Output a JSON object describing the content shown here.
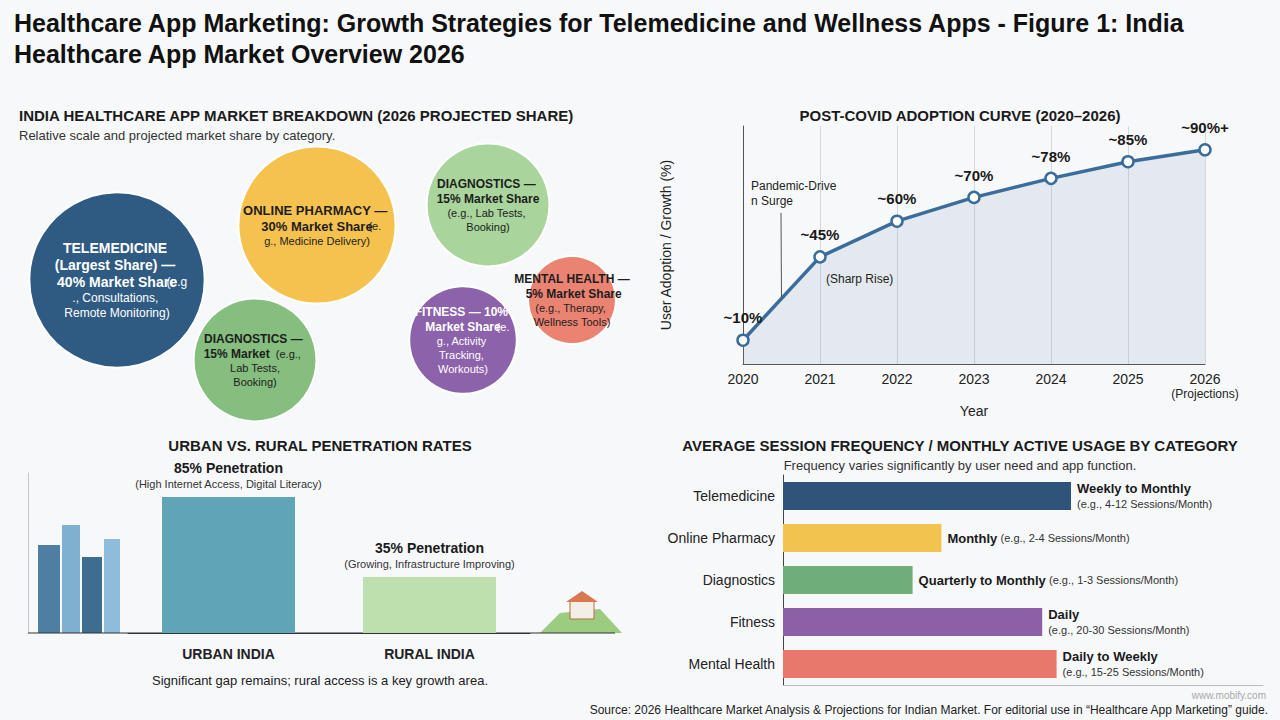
{
  "title": "Healthcare App Marketing: Growth Strategies for Telemedicine and Wellness Apps - Figure 1: India Healthcare App Market Overview 2026",
  "source": "Source: 2026 Healthcare Market Analysis & Projections for Indian Market. For editorial use in “Healthcare App Marketing” guide.",
  "watermark": "www.mobify.com",
  "chart_data": [
    {
      "type": "bubble",
      "title": "INDIA HEALTHCARE APP MARKET BREAKDOWN (2026 PROJECTED SHARE)",
      "subtitle": "Relative scale and projected market share by category.",
      "values": [
        40,
        30,
        15,
        15,
        10,
        5
      ],
      "value_labels": [
        "TELEMEDICINE (Largest Share) — 40% Market Share",
        "ONLINE PHARMACY — 30% Market Share",
        "DIAGNOSTICS — 15% Market Share",
        "DIAGNOSTICS — 15% Market",
        "FITNESS — 10% Market Share",
        "MENTAL HEALTH — 5% Market Share"
      ],
      "annotations": [
        "(e.g., Consultations, Remote Monitoring)",
        "(e.g., Medicine Delivery)",
        "(e.g., Lab Tests, Booking)",
        "(e.g., Lab Tests, Booking)",
        "(e.g., Activity Tracking, Workouts)",
        "(e.g., Therapy, Wellness Tools)"
      ],
      "colors": [
        "#2f5b83",
        "#f6c24f",
        "#a9d49c",
        "#86be7f",
        "#8c62aa",
        "#eb8373"
      ],
      "data_labels": true
    },
    {
      "type": "line",
      "title": "POST-COVID ADOPTION CURVE (2020–2026)",
      "x_label": "Year",
      "y_label": "User Adoption / Growth (%)",
      "categories": [
        "2020",
        "2021",
        "2022",
        "2023",
        "2024",
        "2025",
        "2026 (Projections)"
      ],
      "values": [
        10,
        45,
        60,
        70,
        78,
        85,
        90
      ],
      "value_labels": [
        "~10%",
        "~45%",
        "~60%",
        "~70%",
        "~78%",
        "~85%",
        "~90%+"
      ],
      "ylim": [
        0,
        100
      ],
      "color": "#3b6d9c",
      "marker": "circle",
      "grid": true,
      "tick_labels": "x",
      "data_labels": true,
      "annotations": [
        "Pandemic-Driven Surge",
        "(Sharp Rise)"
      ]
    },
    {
      "type": "bar",
      "title": "URBAN VS. RURAL PENETRATION RATES",
      "categories": [
        "URBAN INDIA",
        "RURAL INDIA"
      ],
      "values": [
        85,
        35
      ],
      "value_labels": [
        "85% Penetration",
        "35% Penetration"
      ],
      "annotations": [
        "(High Internet Access, Digital Literacy)",
        "(Growing, Infrastructure Improving)"
      ],
      "caption": "Significant gap remains; rural access is a key growth area.",
      "colors": [
        "#5fa4b7",
        "#bde0ae"
      ],
      "ylim": [
        0,
        100
      ],
      "tick_labels": "x",
      "data_labels": true
    },
    {
      "type": "bar",
      "orientation": "horizontal",
      "title": "AVERAGE SESSION FREQUENCY / MONTHLY ACTIVE USAGE BY CATEGORY",
      "subtitle": "Frequency varies significantly by user need and app function.",
      "categories": [
        "Telemedicine",
        "Online Pharmacy",
        "Diagnostics",
        "Fitness",
        "Mental Health"
      ],
      "values": [
        60,
        33,
        27,
        54,
        57
      ],
      "frequency_labels": [
        "Weekly to Monthly",
        "Monthly",
        "Quarterly to Monthly",
        "Daily",
        "Daily to Weekly"
      ],
      "annotations": [
        "(e.g., 4-12 Sessions/Month)",
        "(e.g., 2-4 Sessions/Month)",
        "(e.g., 1-3 Sessions/Month)",
        "(e.g., 20-30 Sessions/Month)",
        "(e.g., 15-25 Sessions/Month)"
      ],
      "colors": [
        "#2f5479",
        "#f3c350",
        "#6fae7a",
        "#8c5fa6",
        "#e9786c"
      ],
      "xlim": [
        0,
        100
      ],
      "tick_labels": "y"
    }
  ]
}
